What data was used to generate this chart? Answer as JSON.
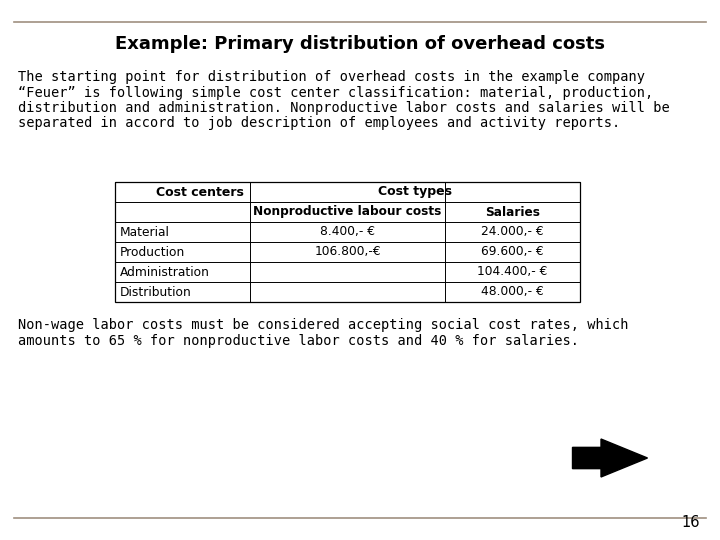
{
  "title": "Example: Primary distribution of overhead costs",
  "para1_lines": [
    "The starting point for distribution of overhead costs in the example company",
    "“Feuer” is following simple cost center classification: material, production,",
    "distribution and administration. Nonproductive labor costs and salaries will be",
    "separated in accord to job description of employees and activity reports."
  ],
  "para2_lines": [
    "Non-wage labor costs must be considered accepting social cost rates, which",
    "amounts to 65 % for nonproductive labor costs and 40 % for salaries."
  ],
  "page_number": "16",
  "table_rows": [
    [
      "Material",
      "8.400,- €",
      "24.000,- €"
    ],
    [
      "Production",
      "106.800,-€",
      "69.600,- €"
    ],
    [
      "Administration",
      "",
      "104.400,- €"
    ],
    [
      "Distribution",
      "",
      "48.000,- €"
    ]
  ],
  "bg_color": "#ffffff",
  "text_color": "#000000",
  "line_color": "#a09080",
  "title_fontsize": 13,
  "body_fontsize": 9.8,
  "table_header_fontsize": 9.0,
  "table_data_fontsize": 8.8
}
